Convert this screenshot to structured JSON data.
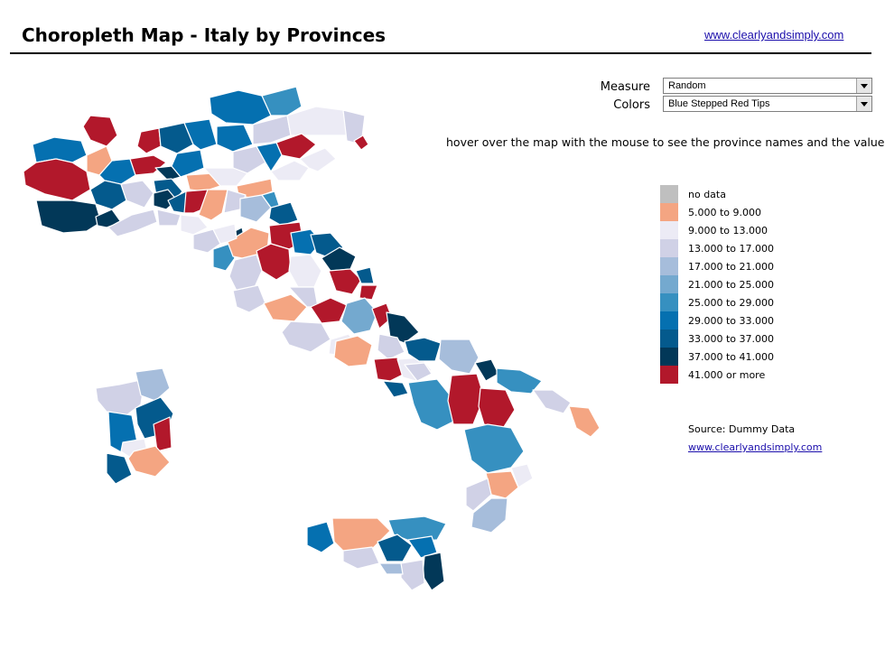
{
  "title": "Choropleth Map - Italy by Provinces",
  "header_link": "www.clearlyandsimply.com",
  "controls": {
    "measure_label": "Measure",
    "measure_value": "Random",
    "colors_label": "Colors",
    "colors_value": "Blue Stepped Red Tips"
  },
  "hint": "hover over the map with the mouse to see the province names and the values",
  "legend": [
    {
      "label": "no data",
      "color": "#bfbfbf"
    },
    {
      "label": "5.000  to 9.000",
      "color": "#f4a582"
    },
    {
      "label": "9.000 to 13.000",
      "color": "#ecebf5"
    },
    {
      "label": "13.000 to 17.000",
      "color": "#d0d1e6"
    },
    {
      "label": "17.000 to 21.000",
      "color": "#a6bddb"
    },
    {
      "label": "21.000 to 25.000",
      "color": "#74a9cf"
    },
    {
      "label": "25.000 to 29.000",
      "color": "#3690c0"
    },
    {
      "label": "29.000 to 33.000",
      "color": "#0570b0"
    },
    {
      "label": "33.000 to 37.000",
      "color": "#045a8d"
    },
    {
      "label": "37.000 to 41.000",
      "color": "#023858"
    },
    {
      "label": "41.000 or more",
      "color": "#b2182b"
    }
  ],
  "source_text": "Source: Dummy Data",
  "source_link": "www.clearlyandsimply.com",
  "icons": {
    "dropdown_arrow": "chevron-down-icon"
  }
}
